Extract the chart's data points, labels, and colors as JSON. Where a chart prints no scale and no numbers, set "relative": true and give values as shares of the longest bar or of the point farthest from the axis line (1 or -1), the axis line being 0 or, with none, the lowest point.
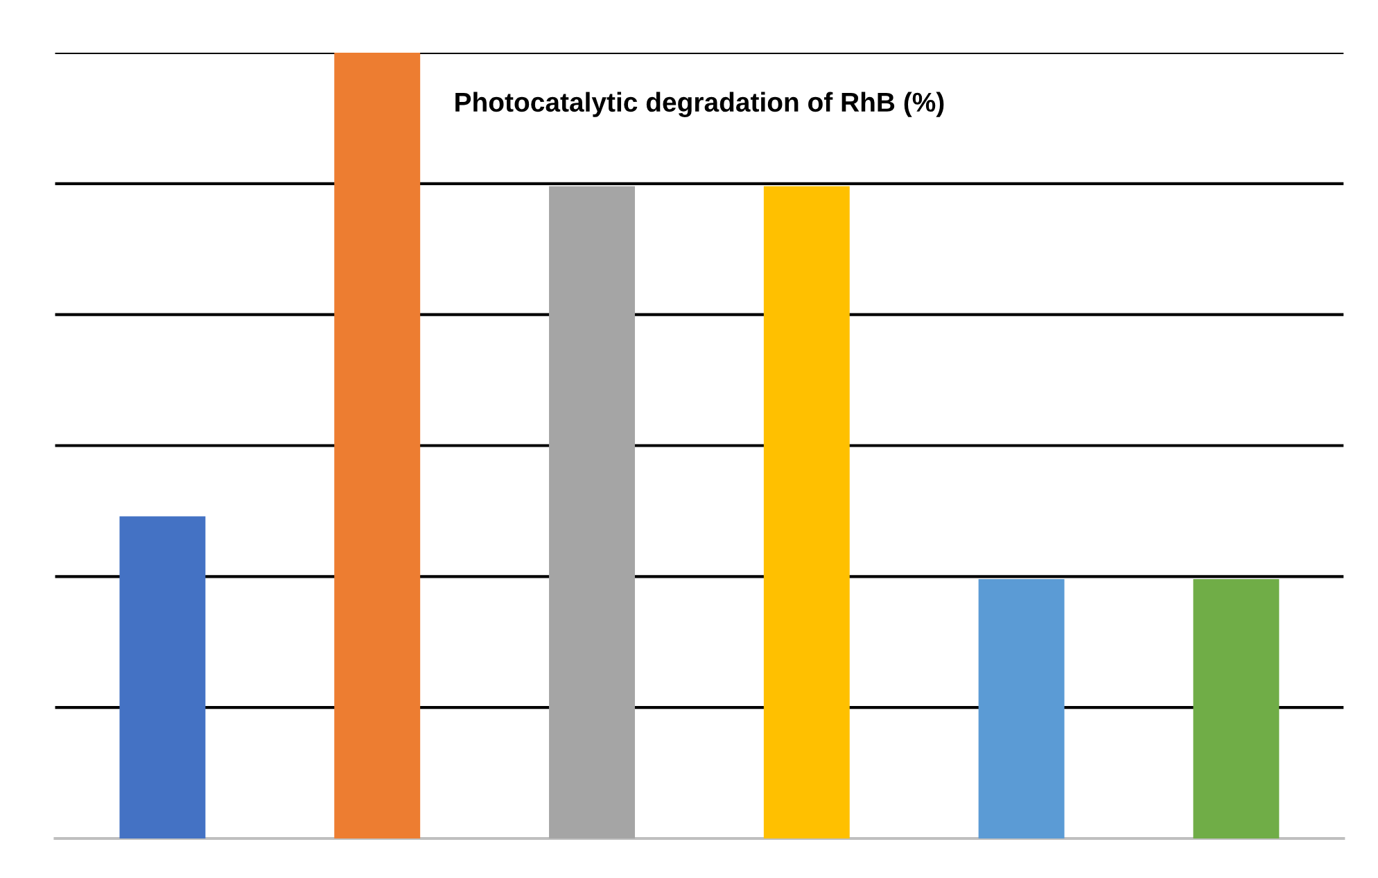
{
  "chart_data": {
    "type": "bar",
    "title": "Photocatalytic degradation of RhB (%)",
    "categories": [
      null,
      null,
      null,
      null,
      null,
      null
    ],
    "values": [
      0.41,
      1,
      0.83,
      0.83,
      0.33,
      0.33
    ],
    "colors": [
      "#4472c4",
      "#ed7d31",
      "#a5a5a5",
      "#ffc000",
      "#5b9bd5",
      "#70ad47"
    ],
    "relative": true,
    "grid": "y"
  }
}
